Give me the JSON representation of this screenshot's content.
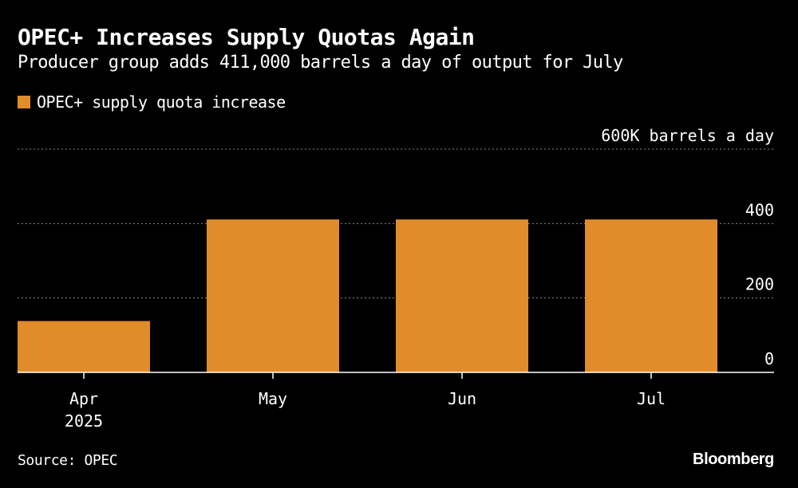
{
  "header": {
    "title": "OPEC+ Increases Supply Quotas Again",
    "subtitle": "Producer group adds 411,000 barrels a day of output for July"
  },
  "legend": {
    "label": "OPEC+ supply quota increase",
    "color": "#e08c2a"
  },
  "footer": {
    "source": "Source: OPEC",
    "brand": "Bloomberg"
  },
  "chart_data": {
    "type": "bar",
    "title": "OPEC+ Increases Supply Quotas Again",
    "subtitle": "Producer group adds 411,000 barrels a day of output for July",
    "categories": [
      "Apr",
      "May",
      "Jun",
      "Jul"
    ],
    "category_sublabels": [
      "2025",
      "",
      "",
      ""
    ],
    "series": [
      {
        "name": "OPEC+ supply quota increase",
        "values": [
          138,
          411,
          411,
          411
        ]
      }
    ],
    "ylim": [
      0,
      600
    ],
    "yticks": [
      0,
      200,
      400,
      600
    ],
    "ytick_labels": [
      "0",
      "200",
      "400",
      "600K barrels a day"
    ],
    "xlabel": "",
    "ylabel": "",
    "grid": true,
    "legend_position": "top-left",
    "colors": {
      "bar": "#e08c2a",
      "grid": "#8a8a8a",
      "axis": "#ffffff",
      "background": "#000000"
    }
  }
}
